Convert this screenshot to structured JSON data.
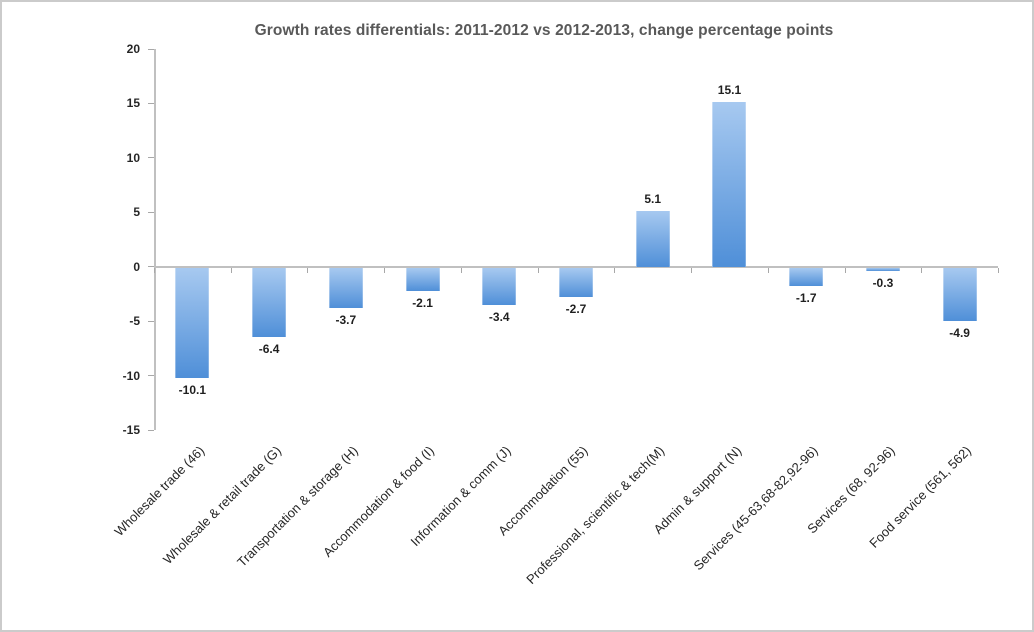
{
  "chart_data": {
    "type": "bar",
    "title": "Growth rates differentials: 2011-2012 vs 2012-2013, change percentage points",
    "categories": [
      "Wholesale trade (46)",
      "Wholesale & retail trade (G)",
      "Transportation & storage (H)",
      "Accommodation & food (I)",
      "Information & comm (J)",
      "Accommodation (55)",
      "Professional, scientific & tech(M)",
      "Admin & support (N)",
      "Services (45-63,68-82,92-96)",
      "Services (68, 92-96)",
      "Food service (561, 562)"
    ],
    "values": [
      -10.1,
      -6.4,
      -3.7,
      -2.1,
      -3.4,
      -2.7,
      5.1,
      15.1,
      -1.7,
      -0.3,
      -4.9
    ],
    "value_labels": [
      "-10.1",
      "-6.4",
      "-3.7",
      "-2.1",
      "-3.4",
      "-2.7",
      "5.1",
      "15.1",
      "-1.7",
      "-0.3",
      "-4.9"
    ],
    "xlabel": "",
    "ylabel": "",
    "ylim": [
      -15,
      20
    ],
    "yticks": [
      20,
      15,
      10,
      5,
      0,
      -5,
      -10,
      -15
    ],
    "grid": false,
    "legend": "none",
    "colors": {
      "bar_gradient_top": "#a7c9f0",
      "bar_gradient_bottom": "#4f8fd8",
      "axis": "#c0c0c0",
      "tick": "#a8a8a8",
      "title": "#595959",
      "value_label": "#1f1f1f",
      "category_label": "#262626",
      "frame_border": "#cbcbcb"
    }
  }
}
